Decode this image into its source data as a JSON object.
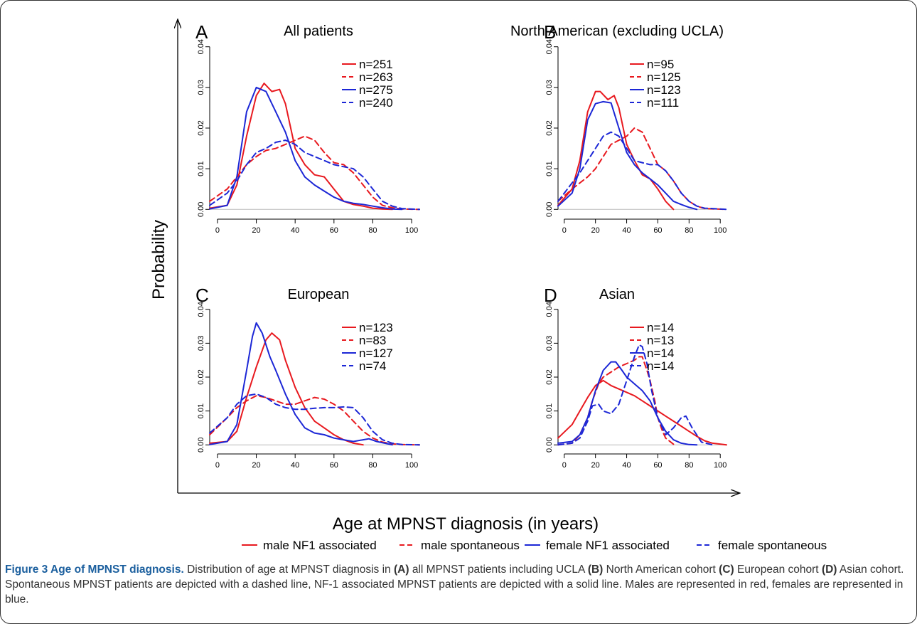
{
  "figure": {
    "y_label": "Probability",
    "x_label": "Age at MPNST diagnosis (in years)"
  },
  "legend": [
    {
      "label": "male NF1 associated",
      "color": "#e8191f",
      "dash": false
    },
    {
      "label": "male spontaneous",
      "color": "#e8191f",
      "dash": true
    },
    {
      "label": "female NF1 associated",
      "color": "#1c27d6",
      "dash": false
    },
    {
      "label": "female spontaneous",
      "color": "#1c27d6",
      "dash": true
    }
  ],
  "caption": {
    "title": "Figure 3 Age of MPNST diagnosis.",
    "p1": " Distribution of age at MPNST diagnosis in ",
    "r1": "(A)",
    "p2": " all MPNST patients including UCLA ",
    "r2": "(B)",
    "p3": " North American cohort ",
    "r3": "(C)",
    "p4": " European cohort ",
    "r4": "(D)",
    "p5": " Asian cohort. Spontaneous MPNST patients are depicted with a dashed line, NF-1 associated MPNST patients are depicted with a solid line. Males are represented in red, females are represented in blue."
  },
  "chart_data": [
    {
      "type": "line",
      "letter": "A",
      "title": "All patients",
      "xlim": [
        -4,
        104
      ],
      "ylim": [
        -0.001,
        0.041
      ],
      "x_ticks": [
        0,
        20,
        40,
        60,
        80,
        100
      ],
      "y_ticks": [
        0.0,
        0.01,
        0.02,
        0.03,
        0.04
      ],
      "y_tick_labels": [
        "0.00",
        "0.01",
        "0.02",
        "0.03",
        "0.04"
      ],
      "series": [
        {
          "name": "n=251",
          "color": "#e8191f",
          "dash": false,
          "x": [
            -4,
            5,
            10,
            15,
            20,
            24,
            28,
            32,
            35,
            40,
            45,
            50,
            55,
            60,
            65,
            70,
            75,
            80,
            85,
            90
          ],
          "y": [
            0.0003,
            0.001,
            0.006,
            0.018,
            0.028,
            0.031,
            0.029,
            0.0295,
            0.026,
            0.015,
            0.011,
            0.0085,
            0.008,
            0.005,
            0.002,
            0.0012,
            0.0008,
            0.0003,
            0.0001,
            0.0
          ]
        },
        {
          "name": "n=263",
          "color": "#e8191f",
          "dash": true,
          "x": [
            -4,
            5,
            10,
            15,
            20,
            25,
            30,
            35,
            40,
            45,
            50,
            55,
            60,
            65,
            70,
            75,
            80,
            85,
            90,
            95,
            104
          ],
          "y": [
            0.002,
            0.005,
            0.008,
            0.011,
            0.013,
            0.0145,
            0.015,
            0.016,
            0.017,
            0.018,
            0.017,
            0.014,
            0.0115,
            0.011,
            0.009,
            0.006,
            0.003,
            0.001,
            0.0004,
            0.0001,
            0.0
          ]
        },
        {
          "name": "n=275",
          "color": "#1c27d6",
          "dash": false,
          "x": [
            -4,
            5,
            10,
            15,
            20,
            25,
            30,
            35,
            40,
            45,
            50,
            55,
            60,
            65,
            70,
            75,
            80,
            85,
            90,
            95
          ],
          "y": [
            0.0001,
            0.001,
            0.008,
            0.024,
            0.03,
            0.029,
            0.024,
            0.019,
            0.012,
            0.008,
            0.006,
            0.0045,
            0.003,
            0.002,
            0.0015,
            0.0012,
            0.0008,
            0.0004,
            0.0001,
            0.0
          ]
        },
        {
          "name": "n=240",
          "color": "#1c27d6",
          "dash": true,
          "x": [
            -4,
            5,
            10,
            15,
            20,
            25,
            30,
            35,
            40,
            45,
            50,
            55,
            60,
            65,
            70,
            75,
            80,
            85,
            90,
            95,
            104
          ],
          "y": [
            0.001,
            0.004,
            0.007,
            0.011,
            0.014,
            0.015,
            0.0165,
            0.017,
            0.016,
            0.014,
            0.013,
            0.012,
            0.011,
            0.0105,
            0.01,
            0.008,
            0.005,
            0.002,
            0.0008,
            0.0002,
            0.0
          ]
        }
      ]
    },
    {
      "type": "line",
      "letter": "B",
      "title": "North American (excluding UCLA)",
      "xlim": [
        -4,
        104
      ],
      "ylim": [
        -0.001,
        0.041
      ],
      "x_ticks": [
        0,
        20,
        40,
        60,
        80,
        100
      ],
      "y_ticks": [
        0.0,
        0.01,
        0.02,
        0.03,
        0.04
      ],
      "y_tick_labels": [
        "0.00",
        "0.01",
        "0.02",
        "0.03",
        "0.04"
      ],
      "series": [
        {
          "name": "n=95",
          "color": "#e8191f",
          "dash": false,
          "x": [
            -4,
            5,
            10,
            15,
            20,
            23,
            28,
            32,
            35,
            40,
            45,
            50,
            55,
            60,
            65,
            70
          ],
          "y": [
            0.001,
            0.005,
            0.012,
            0.024,
            0.029,
            0.029,
            0.027,
            0.028,
            0.025,
            0.016,
            0.012,
            0.0085,
            0.0075,
            0.005,
            0.002,
            0.0
          ]
        },
        {
          "name": "n=125",
          "color": "#e8191f",
          "dash": true,
          "x": [
            -4,
            5,
            10,
            15,
            20,
            25,
            30,
            35,
            40,
            45,
            50,
            55,
            60,
            65,
            70,
            75,
            80,
            85,
            90,
            104
          ],
          "y": [
            0.002,
            0.005,
            0.0065,
            0.008,
            0.01,
            0.013,
            0.016,
            0.017,
            0.018,
            0.02,
            0.019,
            0.015,
            0.011,
            0.0095,
            0.007,
            0.004,
            0.002,
            0.0008,
            0.0002,
            0.0
          ]
        },
        {
          "name": "n=123",
          "color": "#1c27d6",
          "dash": false,
          "x": [
            -4,
            5,
            10,
            15,
            20,
            25,
            30,
            35,
            40,
            45,
            50,
            55,
            60,
            65,
            70,
            75,
            80,
            85
          ],
          "y": [
            0.0008,
            0.004,
            0.01,
            0.022,
            0.026,
            0.0265,
            0.0262,
            0.02,
            0.014,
            0.011,
            0.009,
            0.0075,
            0.006,
            0.004,
            0.002,
            0.0012,
            0.0005,
            0.0
          ]
        },
        {
          "name": "n=111",
          "color": "#1c27d6",
          "dash": true,
          "x": [
            -4,
            5,
            10,
            15,
            20,
            25,
            30,
            35,
            40,
            45,
            50,
            55,
            60,
            65,
            70,
            75,
            80,
            85,
            90,
            100,
            104
          ],
          "y": [
            0.002,
            0.0065,
            0.009,
            0.012,
            0.015,
            0.018,
            0.019,
            0.018,
            0.015,
            0.012,
            0.0115,
            0.011,
            0.011,
            0.0095,
            0.007,
            0.004,
            0.002,
            0.0008,
            0.0003,
            0.0001,
            0.0
          ]
        }
      ]
    },
    {
      "type": "line",
      "letter": "C",
      "title": "European",
      "xlim": [
        -4,
        104
      ],
      "ylim": [
        -0.001,
        0.041
      ],
      "x_ticks": [
        0,
        20,
        40,
        60,
        80,
        100
      ],
      "y_ticks": [
        0.0,
        0.01,
        0.02,
        0.03,
        0.04
      ],
      "y_tick_labels": [
        "0.00",
        "0.01",
        "0.02",
        "0.03",
        "0.04"
      ],
      "series": [
        {
          "name": "n=123",
          "color": "#e8191f",
          "dash": false,
          "x": [
            -4,
            5,
            10,
            15,
            20,
            25,
            28,
            32,
            35,
            40,
            45,
            50,
            55,
            60,
            65,
            70,
            75
          ],
          "y": [
            0.0005,
            0.001,
            0.004,
            0.014,
            0.023,
            0.031,
            0.033,
            0.031,
            0.025,
            0.017,
            0.011,
            0.007,
            0.005,
            0.003,
            0.0015,
            0.0005,
            0.0
          ]
        },
        {
          "name": "n=83",
          "color": "#e8191f",
          "dash": true,
          "x": [
            -4,
            5,
            10,
            15,
            20,
            25,
            30,
            35,
            40,
            45,
            50,
            55,
            60,
            65,
            70,
            75,
            80,
            85,
            90,
            95,
            104
          ],
          "y": [
            0.003,
            0.008,
            0.011,
            0.013,
            0.0145,
            0.014,
            0.013,
            0.012,
            0.012,
            0.013,
            0.014,
            0.0135,
            0.012,
            0.01,
            0.007,
            0.004,
            0.002,
            0.0008,
            0.0003,
            0.0001,
            0.0
          ]
        },
        {
          "name": "n=127",
          "color": "#1c27d6",
          "dash": false,
          "x": [
            -4,
            5,
            10,
            15,
            18,
            20,
            23,
            27,
            30,
            35,
            40,
            45,
            50,
            55,
            60,
            65,
            70,
            75,
            78,
            82,
            90
          ],
          "y": [
            0.0001,
            0.001,
            0.006,
            0.022,
            0.032,
            0.036,
            0.033,
            0.026,
            0.022,
            0.015,
            0.009,
            0.005,
            0.0035,
            0.003,
            0.002,
            0.0015,
            0.001,
            0.0015,
            0.0018,
            0.001,
            0.0
          ]
        },
        {
          "name": "n=74",
          "color": "#1c27d6",
          "dash": true,
          "x": [
            -4,
            5,
            10,
            15,
            20,
            25,
            30,
            35,
            40,
            45,
            50,
            55,
            60,
            65,
            70,
            75,
            80,
            85,
            90,
            95,
            104
          ],
          "y": [
            0.0035,
            0.008,
            0.012,
            0.0145,
            0.015,
            0.014,
            0.012,
            0.011,
            0.0105,
            0.0105,
            0.0108,
            0.011,
            0.011,
            0.0112,
            0.011,
            0.008,
            0.004,
            0.0015,
            0.0005,
            0.0001,
            0.0
          ]
        }
      ]
    },
    {
      "type": "line",
      "letter": "D",
      "title": "Asian",
      "xlim": [
        -4,
        104
      ],
      "ylim": [
        -0.001,
        0.041
      ],
      "x_ticks": [
        0,
        20,
        40,
        60,
        80,
        100
      ],
      "y_ticks": [
        0.0,
        0.01,
        0.02,
        0.03,
        0.04
      ],
      "y_tick_labels": [
        "0.00",
        "0.01",
        "0.02",
        "0.03",
        "0.04"
      ],
      "series": [
        {
          "name": "n=14",
          "color": "#e8191f",
          "dash": false,
          "x": [
            -4,
            5,
            10,
            15,
            20,
            25,
            30,
            35,
            40,
            45,
            50,
            55,
            60,
            65,
            70,
            75,
            80,
            85,
            90,
            95,
            104
          ],
          "y": [
            0.002,
            0.006,
            0.01,
            0.014,
            0.0175,
            0.019,
            0.0175,
            0.0165,
            0.0155,
            0.0145,
            0.013,
            0.0115,
            0.01,
            0.0085,
            0.007,
            0.0055,
            0.004,
            0.0025,
            0.0012,
            0.0005,
            0.0
          ]
        },
        {
          "name": "n=13",
          "color": "#e8191f",
          "dash": true,
          "x": [
            -4,
            5,
            10,
            15,
            18,
            22,
            25,
            30,
            35,
            40,
            45,
            48,
            50,
            53,
            55,
            58,
            60,
            63,
            65,
            70
          ],
          "y": [
            0.0,
            0.0005,
            0.003,
            0.008,
            0.013,
            0.018,
            0.02,
            0.0215,
            0.023,
            0.024,
            0.025,
            0.026,
            0.026,
            0.022,
            0.019,
            0.013,
            0.008,
            0.004,
            0.002,
            0.0002
          ]
        },
        {
          "name": "n=14",
          "color": "#1c27d6",
          "dash": false,
          "x": [
            -4,
            5,
            10,
            15,
            20,
            25,
            30,
            33,
            37,
            40,
            45,
            50,
            55,
            60,
            65,
            70,
            75,
            80,
            85
          ],
          "y": [
            0.0005,
            0.001,
            0.003,
            0.008,
            0.016,
            0.022,
            0.0245,
            0.0245,
            0.022,
            0.02,
            0.018,
            0.016,
            0.013,
            0.008,
            0.004,
            0.0015,
            0.0005,
            0.0001,
            0.0
          ]
        },
        {
          "name": "n=14",
          "color": "#1c27d6",
          "dash": true,
          "x": [
            -4,
            5,
            10,
            15,
            18,
            22,
            25,
            30,
            35,
            40,
            45,
            48,
            50,
            53,
            56,
            60,
            65,
            70,
            75,
            78,
            82,
            88,
            95
          ],
          "y": [
            0.0,
            0.0005,
            0.002,
            0.007,
            0.0115,
            0.012,
            0.01,
            0.0092,
            0.012,
            0.019,
            0.026,
            0.0295,
            0.029,
            0.024,
            0.016,
            0.008,
            0.003,
            0.005,
            0.008,
            0.0085,
            0.005,
            0.0008,
            0.0
          ]
        }
      ]
    }
  ]
}
